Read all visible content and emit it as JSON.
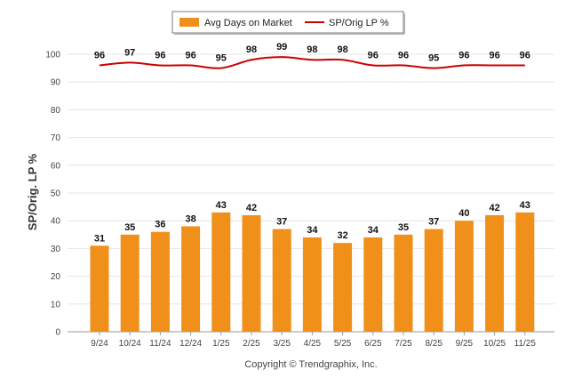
{
  "chart_data": {
    "type": "bar",
    "title": "",
    "xlabel": "",
    "ylabel": "SP/Orig. LP %",
    "ylim": [
      0,
      100
    ],
    "yticks": [
      0,
      10,
      20,
      30,
      40,
      50,
      60,
      70,
      80,
      90,
      100
    ],
    "grid": true,
    "legend_position": "top-center",
    "categories": [
      "9/24",
      "10/24",
      "11/24",
      "12/24",
      "1/25",
      "2/25",
      "3/25",
      "4/25",
      "5/25",
      "6/25",
      "7/25",
      "8/25",
      "9/25",
      "10/25",
      "11/25"
    ],
    "series": [
      {
        "name": "Avg Days on Market",
        "type": "bar",
        "color": "#f0901a",
        "values": [
          31,
          35,
          36,
          38,
          43,
          42,
          37,
          34,
          32,
          34,
          35,
          37,
          40,
          42,
          43
        ]
      },
      {
        "name": "SP/Orig LP %",
        "type": "line",
        "color": "#cc0000",
        "values": [
          96,
          97,
          96,
          96,
          95,
          98,
          99,
          98,
          98,
          96,
          96,
          95,
          96,
          96,
          96
        ]
      }
    ]
  },
  "footer": {
    "copyright": "Copyright © Trendgraphix, Inc."
  }
}
